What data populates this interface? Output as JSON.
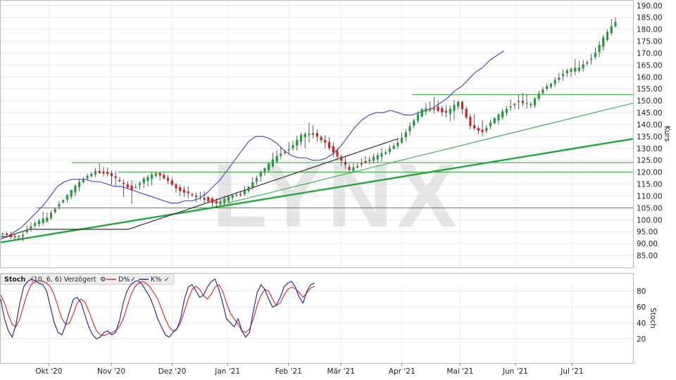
{
  "watermark": "LYNX",
  "chart_data": [
    {
      "type": "candlestick",
      "ylabel": "Kurs",
      "ylim": [
        80,
        192
      ],
      "y_ticks": [
        "85.00",
        "90.00",
        "95.00",
        "100.00",
        "105.00",
        "110.00",
        "115.00",
        "120.00",
        "125.00",
        "130.00",
        "135.00",
        "140.00",
        "145.00",
        "150.00",
        "155.00",
        "160.00",
        "165.00",
        "170.00",
        "175.00",
        "180.00",
        "185.00",
        "190.00"
      ],
      "y_tick_values": [
        85,
        90,
        95,
        100,
        105,
        110,
        115,
        120,
        125,
        130,
        135,
        140,
        145,
        150,
        155,
        160,
        165,
        170,
        175,
        180,
        185,
        190
      ],
      "x_range": [
        0,
        44
      ],
      "x_tick_labels": [
        "Okt '20",
        "Nov '20",
        "Dez '20",
        "Jan '21",
        "Feb '21",
        "Mär '21",
        "Apr '21",
        "Mai '21",
        "Jun '21",
        "Jul '21"
      ],
      "x_tick_weeks": [
        3.4,
        7.8,
        12.1,
        16.0,
        20.3,
        24.0,
        28.3,
        32.4,
        36.3,
        40.3
      ],
      "grid": true,
      "horizontal_levels": [
        {
          "value": 152.5,
          "x_start": 29.0
        },
        {
          "value": 124.0,
          "x_start": 5.0
        },
        {
          "value": 120.0,
          "x_start": 8.3
        },
        {
          "value": 105.0,
          "x_start": 2.5
        }
      ],
      "trendlines": [
        {
          "from": [
            0,
            90.5
          ],
          "to": [
            44.6,
            134.0
          ],
          "weight": "bold"
        },
        {
          "from": [
            16.0,
            107.0
          ],
          "to": [
            44.6,
            149.0
          ],
          "weight": "thin"
        }
      ],
      "ohlc_weekly": [
        [
          94,
          95,
          92,
          93
        ],
        [
          93,
          95,
          91,
          94
        ],
        [
          95,
          100,
          94,
          98
        ],
        [
          98,
          104,
          97,
          101
        ],
        [
          101,
          108,
          100,
          107
        ],
        [
          107,
          112,
          106,
          112
        ],
        [
          112,
          118,
          110,
          117
        ],
        [
          117,
          122,
          116,
          121
        ],
        [
          121,
          124,
          118,
          119
        ],
        [
          119,
          121,
          112,
          116
        ],
        [
          116,
          118,
          106,
          113
        ],
        [
          113,
          118,
          111,
          117
        ],
        [
          117,
          120,
          114,
          119
        ],
        [
          119,
          120,
          115,
          117
        ],
        [
          117,
          118,
          110,
          112
        ],
        [
          112,
          114,
          108,
          110
        ],
        [
          110,
          113,
          107,
          109
        ],
        [
          109,
          110,
          105,
          107
        ],
        [
          107,
          110,
          106,
          109
        ],
        [
          109,
          112,
          108,
          111
        ],
        [
          111,
          118,
          110,
          116
        ],
        [
          116,
          122,
          114,
          121
        ],
        [
          121,
          130,
          120,
          127
        ],
        [
          127,
          133,
          125,
          130
        ],
        [
          130,
          137,
          128,
          135
        ],
        [
          135,
          141,
          130,
          136
        ],
        [
          136,
          138,
          130,
          133
        ],
        [
          133,
          135,
          124,
          126
        ],
        [
          126,
          128,
          119,
          121
        ],
        [
          121,
          126,
          120,
          124
        ],
        [
          124,
          128,
          123,
          126
        ],
        [
          126,
          130,
          124,
          128
        ],
        [
          128,
          135,
          127,
          133
        ],
        [
          133,
          141,
          131,
          139
        ],
        [
          139,
          147,
          138,
          146
        ],
        [
          146,
          152,
          144,
          147
        ],
        [
          147,
          150,
          143,
          145
        ],
        [
          145,
          151,
          141,
          149
        ],
        [
          149,
          150,
          138,
          140
        ],
        [
          140,
          145,
          135,
          137
        ],
        [
          137,
          143,
          136,
          142
        ],
        [
          142,
          148,
          140,
          147
        ],
        [
          147,
          153,
          144,
          150
        ],
        [
          150,
          154,
          146,
          148
        ],
        [
          148,
          156,
          147,
          155
        ],
        [
          155,
          160,
          154,
          159
        ],
        [
          159,
          164,
          157,
          162
        ],
        [
          162,
          168,
          160,
          164
        ],
        [
          164,
          170,
          162,
          168
        ],
        [
          168,
          178,
          166,
          176
        ],
        [
          176,
          186,
          175,
          183
        ]
      ],
      "series": [
        {
          "name": "",
          "color": "#4b4fc9",
          "x_step": 0.5,
          "values": [
            93,
            93,
            95,
            97,
            100,
            103,
            106,
            110,
            114,
            116,
            117,
            117,
            117,
            116,
            116,
            115,
            114,
            114,
            113,
            112,
            111,
            110,
            109,
            108,
            107,
            107,
            108,
            108,
            109,
            111,
            114,
            117,
            121,
            125,
            129,
            133,
            135,
            135,
            134,
            132,
            129,
            127,
            126,
            126,
            125,
            125,
            126,
            128,
            131,
            135,
            139,
            142,
            144,
            145,
            145,
            146,
            145,
            144,
            144,
            145,
            146,
            147,
            149,
            151,
            154,
            156,
            159,
            162,
            164,
            167,
            169,
            171
          ]
        },
        {
          "name": "",
          "color": "#333333",
          "x_step": 0.5,
          "values": [
            92,
            93,
            94,
            95,
            96,
            96,
            96,
            96,
            96,
            96,
            96,
            96,
            96,
            96,
            96,
            96,
            96,
            96,
            96,
            97,
            98,
            99,
            100,
            101,
            102,
            103,
            104,
            105,
            106,
            107,
            108,
            109,
            110,
            111,
            112,
            113,
            114,
            115,
            116,
            117,
            118,
            119,
            120,
            121,
            122,
            123,
            124,
            125,
            126,
            127,
            128,
            129,
            130,
            131,
            132,
            133,
            134
          ]
        }
      ]
    },
    {
      "type": "line",
      "ylabel": "Stoch",
      "ylim": [
        0,
        100
      ],
      "y_ticks": [
        "20",
        "40",
        "60",
        "80"
      ],
      "y_tick_values": [
        20,
        40,
        60,
        80
      ],
      "x_range": [
        0,
        44
      ],
      "grid": true,
      "legend": {
        "indicator": "Stoch",
        "params": "(10, 6, 6) Verzögert",
        "d_label": "D%",
        "k_label": "K%",
        "placement": "top-left"
      },
      "series": [
        {
          "name": "D%",
          "color": "#e03030",
          "x_step": 0.5,
          "values": [
            75,
            65,
            50,
            38,
            35,
            45,
            62,
            78,
            88,
            92,
            93,
            92,
            90,
            85,
            75,
            60,
            45,
            38,
            40,
            52,
            65,
            70,
            66,
            55,
            42,
            30,
            25,
            24,
            26,
            28,
            30,
            35,
            45,
            60,
            75,
            85,
            90,
            92,
            90,
            85,
            78,
            70,
            58,
            45,
            35,
            30,
            32,
            40,
            55,
            70,
            82,
            86,
            82,
            74,
            70,
            76,
            85,
            88,
            80,
            65,
            52,
            45,
            38,
            30,
            28,
            32,
            45,
            62,
            75,
            82,
            80,
            70,
            62,
            65,
            75,
            82,
            85,
            83,
            78,
            72,
            78,
            84,
            86
          ]
        },
        {
          "name": "K%",
          "color": "#2a2f9a",
          "x_step": 0.5,
          "values": [
            70,
            45,
            30,
            22,
            38,
            65,
            85,
            92,
            95,
            93,
            90,
            88,
            80,
            60,
            40,
            28,
            25,
            38,
            55,
            70,
            72,
            65,
            50,
            35,
            25,
            20,
            22,
            28,
            30,
            25,
            28,
            42,
            65,
            80,
            88,
            92,
            93,
            88,
            80,
            72,
            60,
            45,
            35,
            25,
            22,
            28,
            32,
            45,
            70,
            85,
            88,
            80,
            72,
            75,
            85,
            92,
            95,
            82,
            65,
            45,
            40,
            35,
            45,
            30,
            22,
            28,
            55,
            78,
            88,
            82,
            70,
            60,
            62,
            72,
            85,
            90,
            92,
            85,
            72,
            65,
            80,
            88,
            90
          ]
        }
      ],
      "x_tick_labels": [
        "Okt '20",
        "Nov '20",
        "Dez '20",
        "Jan '21",
        "Feb '21",
        "Mär '21",
        "Apr '21",
        "Mai '21",
        "Jun '21",
        "Jul '21"
      ]
    }
  ]
}
